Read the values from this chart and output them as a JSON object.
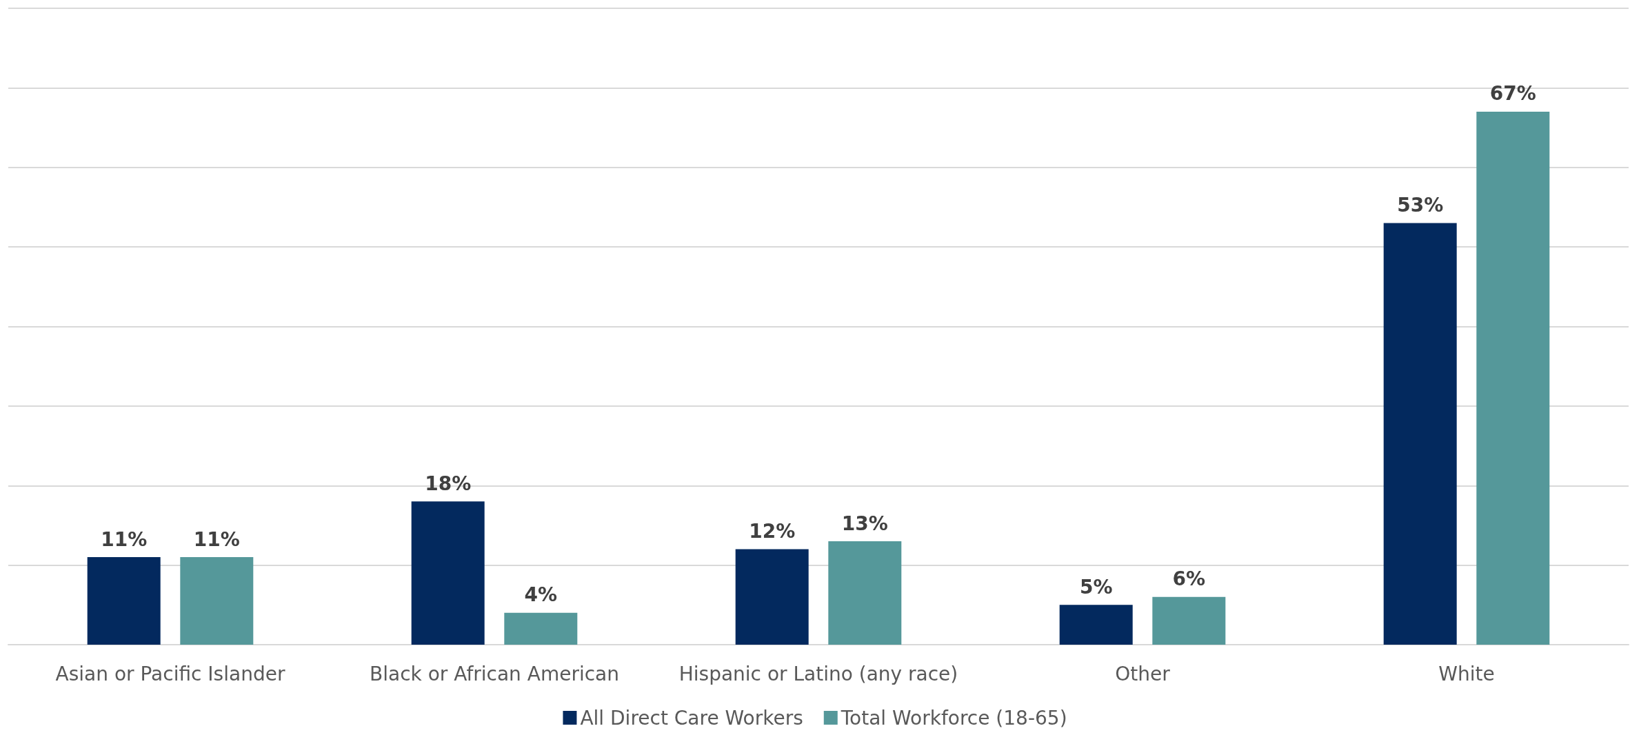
{
  "chart_data": {
    "type": "bar",
    "categories": [
      "Asian or Pacific Islander",
      "Black or African American",
      "Hispanic or Latino (any race)",
      "Other",
      "White"
    ],
    "series": [
      {
        "name": "All Direct Care Workers",
        "color": "#03295e",
        "values": [
          11,
          18,
          12,
          5,
          53
        ],
        "value_labels": [
          "11%",
          "18%",
          "12%",
          "5%",
          "53%"
        ]
      },
      {
        "name": "Total Workforce (18-65)",
        "color": "#55989a",
        "values": [
          11,
          4,
          13,
          6,
          67
        ],
        "value_labels": [
          "11%",
          "4%",
          "13%",
          "6%",
          "67%"
        ]
      }
    ],
    "relative": false,
    "tick_labels": "x",
    "grid": "y",
    "legend": "bottom"
  }
}
